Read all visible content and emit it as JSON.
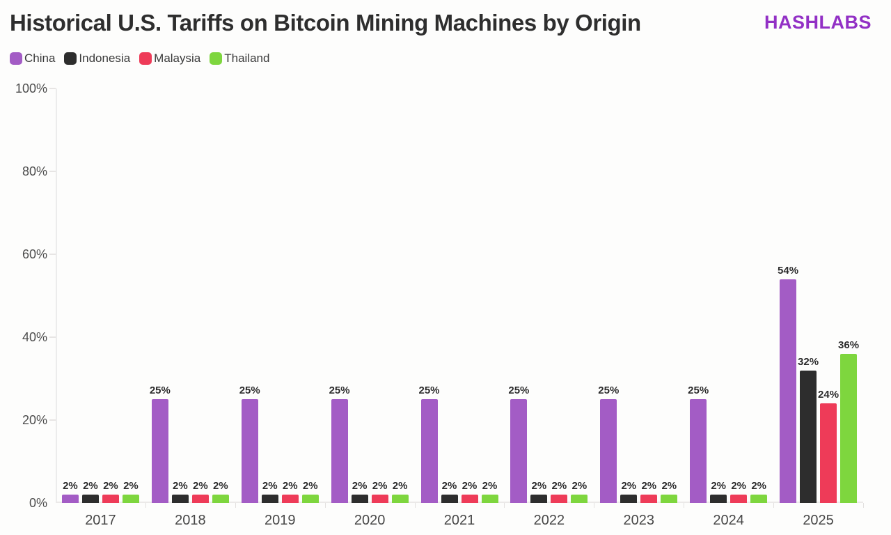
{
  "header": {
    "title": "Historical U.S. Tariffs on Bitcoin Mining Machines by Origin",
    "logo": "HASHLABS",
    "logo_color": "#9230c5"
  },
  "chart_data": {
    "type": "bar",
    "title": "Historical U.S. Tariffs on Bitcoin Mining Machines by Origin",
    "categories": [
      "2017",
      "2018",
      "2019",
      "2020",
      "2021",
      "2022",
      "2023",
      "2024",
      "2025"
    ],
    "series": [
      {
        "name": "China",
        "color": "#a35cc5",
        "values": [
          2,
          25,
          25,
          25,
          25,
          25,
          25,
          25,
          54
        ]
      },
      {
        "name": "Indonesia",
        "color": "#2d2d2d",
        "values": [
          2,
          2,
          2,
          2,
          2,
          2,
          2,
          2,
          32
        ]
      },
      {
        "name": "Malaysia",
        "color": "#ee3b58",
        "values": [
          2,
          2,
          2,
          2,
          2,
          2,
          2,
          2,
          24
        ]
      },
      {
        "name": "Thailand",
        "color": "#7ed63e",
        "values": [
          2,
          2,
          2,
          2,
          2,
          2,
          2,
          2,
          36
        ]
      }
    ],
    "xlabel": "",
    "ylabel": "",
    "ylim": [
      0,
      100
    ],
    "yticks": [
      0,
      20,
      40,
      60,
      80,
      100
    ],
    "ytick_suffix": "%",
    "value_label_suffix": "%",
    "grid": false,
    "legend_position": "top-left",
    "bar_value_labels": true
  }
}
